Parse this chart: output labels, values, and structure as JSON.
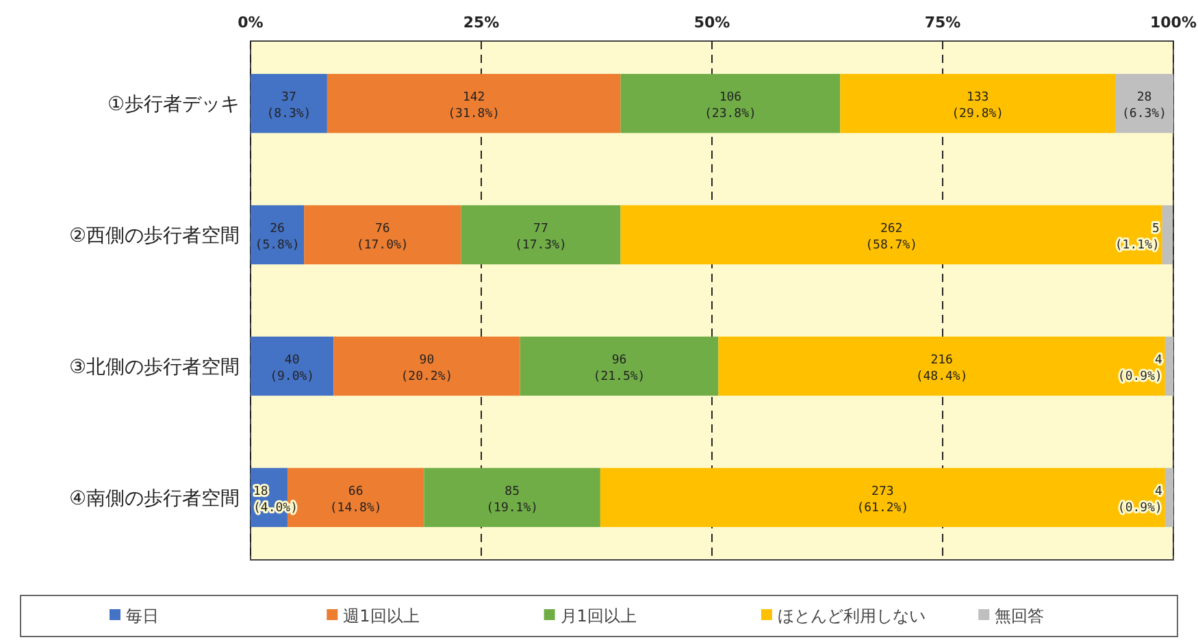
{
  "chart_data": {
    "type": "bar",
    "orientation": "horizontal",
    "stacked": true,
    "categories": [
      "①歩行者デッキ",
      "②西側の歩行者空間",
      "③北側の歩行者空間",
      "④南側の歩行者空間"
    ],
    "series": [
      {
        "name": "毎日",
        "color": "#4472c4",
        "values": [
          8.3,
          5.8,
          9.0,
          4.0
        ],
        "value_labels": [
          "37\n(8.3%)",
          "26\n(5.8%)",
          "40\n(9.0%)",
          "18\n(4.0%)"
        ]
      },
      {
        "name": "週1回以上",
        "color": "#ed7d31",
        "values": [
          31.8,
          17.0,
          20.2,
          14.8
        ],
        "value_labels": [
          "142\n(31.8%)",
          "76\n(17.0%)",
          "90\n(20.2%)",
          "66\n(14.8%)"
        ]
      },
      {
        "name": "月1回以上",
        "color": "#70ad47",
        "values": [
          23.8,
          17.3,
          21.5,
          19.1
        ],
        "value_labels": [
          "106\n(23.8%)",
          "77\n(17.3%)",
          "96\n(21.5%)",
          "85\n(19.1%)"
        ]
      },
      {
        "name": "ほとんど利用しない",
        "color": "#ffc000",
        "values": [
          29.8,
          58.7,
          48.4,
          61.2
        ],
        "value_labels": [
          "133\n(29.8%)",
          "262\n(58.7%)",
          "216\n(48.4%)",
          "273\n(61.2%)"
        ]
      },
      {
        "name": "無回答",
        "color": "#bfbfbf",
        "values": [
          6.3,
          1.1,
          0.9,
          0.9
        ],
        "value_labels": [
          "28\n(6.3%)",
          "5\n(1.1%)",
          "4\n(0.9%)",
          "4\n(0.9%)"
        ]
      }
    ],
    "xlim": [
      0,
      100
    ],
    "xticks": [
      {
        "value": 0,
        "label": "0%"
      },
      {
        "value": 25,
        "label": "25%"
      },
      {
        "value": 50,
        "label": "50%"
      },
      {
        "value": 75,
        "label": "75%"
      },
      {
        "value": 100,
        "label": "100%"
      }
    ],
    "grid": "x",
    "legend": "bottom"
  }
}
